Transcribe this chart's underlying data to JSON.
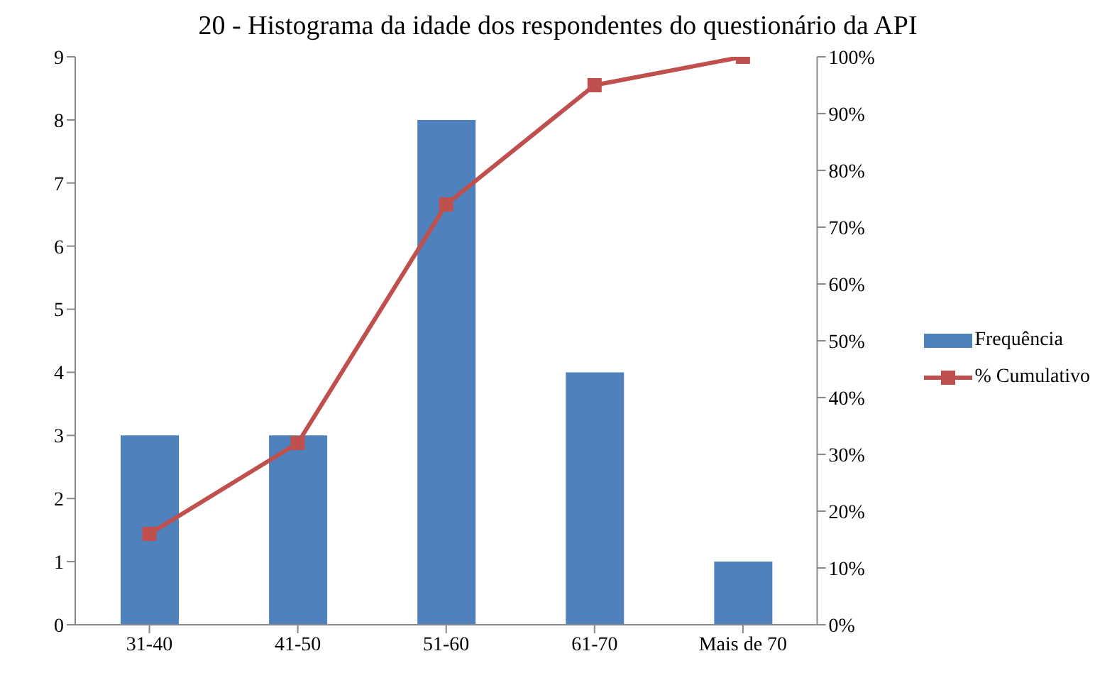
{
  "chart_data": {
    "type": "bar",
    "title": "20 - Histograma da idade dos respondentes do questionário da API",
    "categories": [
      "31-40",
      "41-50",
      "51-60",
      "61-70",
      "Mais de 70"
    ],
    "series": [
      {
        "name": "Frequência",
        "color": "#4f81bd",
        "values": [
          3,
          3,
          8,
          4,
          1
        ]
      },
      {
        "name": "% Cumulativo",
        "type": "line",
        "axis": "y2",
        "color": "#c0504d",
        "marker": "square",
        "values": [
          16,
          32,
          74,
          95,
          100
        ]
      }
    ],
    "ylim": [
      0,
      9
    ],
    "yticks": [
      0,
      1,
      2,
      3,
      4,
      5,
      6,
      7,
      8,
      9
    ],
    "y2lim": [
      0,
      100
    ],
    "y2ticks": [
      {
        "value": 0,
        "label": "0%"
      },
      {
        "value": 10,
        "label": "10%"
      },
      {
        "value": 20,
        "label": "20%"
      },
      {
        "value": 30,
        "label": "30%"
      },
      {
        "value": 40,
        "label": "40%"
      },
      {
        "value": 50,
        "label": "50%"
      },
      {
        "value": 60,
        "label": "60%"
      },
      {
        "value": 70,
        "label": "70%"
      },
      {
        "value": 80,
        "label": "80%"
      },
      {
        "value": 90,
        "label": "90%"
      },
      {
        "value": 100,
        "label": "100%"
      }
    ],
    "grid": false,
    "legend": "right"
  }
}
